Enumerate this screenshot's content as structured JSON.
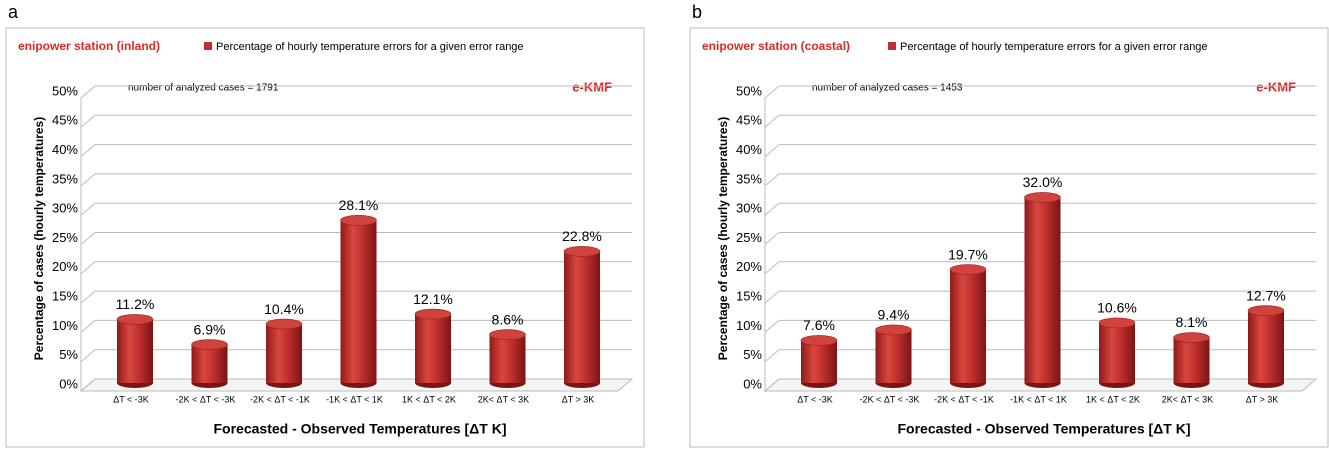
{
  "chart_data": [
    {
      "type": "bar",
      "panel": "a",
      "title": "enipower station (inland)",
      "annotation": "number of analyzed cases = 1791",
      "model": "e-KMF",
      "x_label": "Forecasted - Observed Temperatures [ΔT K]",
      "y_label": "Percentage of cases (hourly temperatures)",
      "categories": [
        "ΔT < -3K",
        "-2K < ΔT < -3K",
        "-2K < ΔT < -1K",
        "-1K < ΔT < 1K",
        "1K < ΔT < 2K",
        "2K< ΔT < 3K",
        "ΔT > 3K"
      ],
      "series": [
        {
          "name": "Percentage of hourly temperature errors for a given error range",
          "color": "#c0302e",
          "values": [
            11.2,
            6.9,
            10.4,
            28.1,
            12.1,
            8.6,
            22.8
          ],
          "value_labels": [
            "11.2%",
            "6.9%",
            "10.4%",
            "28.1%",
            "12.1%",
            "8.6%",
            "22.8%"
          ]
        }
      ],
      "ylim": [
        0,
        50
      ],
      "yticks": [
        {
          "value": 0,
          "label": "0%"
        },
        {
          "value": 5,
          "label": "5%"
        },
        {
          "value": 10,
          "label": "10%"
        },
        {
          "value": 15,
          "label": "15%"
        },
        {
          "value": 20,
          "label": "20%"
        },
        {
          "value": 25,
          "label": "25%"
        },
        {
          "value": 30,
          "label": "30%"
        },
        {
          "value": 35,
          "label": "35%"
        },
        {
          "value": 40,
          "label": "40%"
        },
        {
          "value": 45,
          "label": "45%"
        },
        {
          "value": 50,
          "label": "50%"
        }
      ],
      "grid": true
    },
    {
      "type": "bar",
      "panel": "b",
      "title": "enipower station (coastal)",
      "annotation": "number of analyzed cases = 1453",
      "model": "e-KMF",
      "x_label": "Forecasted - Observed Temperatures [ΔT K]",
      "y_label": "Percentage of cases (hourly temperatures)",
      "categories": [
        "ΔT < -3K",
        "-2K < ΔT < -3K",
        "-2K < ΔT < -1K",
        "-1K < ΔT < 1K",
        "1K < ΔT < 2K",
        "2K< ΔT < 3K",
        "ΔT > 3K"
      ],
      "series": [
        {
          "name": "Percentage of hourly temperature errors for a given error range",
          "color": "#c0302e",
          "values": [
            7.6,
            9.4,
            19.7,
            32.0,
            10.6,
            8.1,
            12.7
          ],
          "value_labels": [
            "7.6%",
            "9.4%",
            "19.7%",
            "32.0%",
            "10.6%",
            "8.1%",
            "12.7%"
          ]
        }
      ],
      "ylim": [
        0,
        50
      ],
      "yticks": [
        {
          "value": 0,
          "label": "0%"
        },
        {
          "value": 5,
          "label": "5%"
        },
        {
          "value": 10,
          "label": "10%"
        },
        {
          "value": 15,
          "label": "15%"
        },
        {
          "value": 20,
          "label": "20%"
        },
        {
          "value": 25,
          "label": "25%"
        },
        {
          "value": 30,
          "label": "30%"
        },
        {
          "value": 35,
          "label": "35%"
        },
        {
          "value": 40,
          "label": "40%"
        },
        {
          "value": 45,
          "label": "45%"
        },
        {
          "value": 50,
          "label": "50%"
        }
      ],
      "grid": true
    }
  ]
}
